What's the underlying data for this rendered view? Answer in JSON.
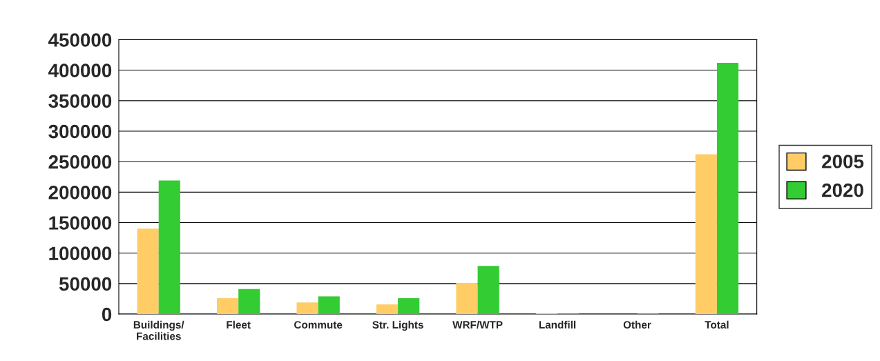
{
  "chart_data": {
    "type": "bar",
    "categories": [
      "Buildings/\nFacilities",
      "Fleet",
      "Commute",
      "Str. Lights",
      "WRF/WTP",
      "Landfill",
      "Other",
      "Total"
    ],
    "series": [
      {
        "name": "2005",
        "color": "#ffcc66",
        "values": [
          140000,
          26000,
          19000,
          16000,
          51000,
          1000,
          0,
          262000
        ]
      },
      {
        "name": "2020",
        "color": "#33cc33",
        "values": [
          219000,
          41000,
          29000,
          26000,
          79000,
          1000,
          1000,
          412000
        ]
      }
    ],
    "ylim": [
      0,
      450000
    ],
    "yticks": [
      0,
      50000,
      100000,
      150000,
      200000,
      250000,
      300000,
      350000,
      400000,
      450000
    ],
    "grid": "y",
    "legend": "right"
  }
}
